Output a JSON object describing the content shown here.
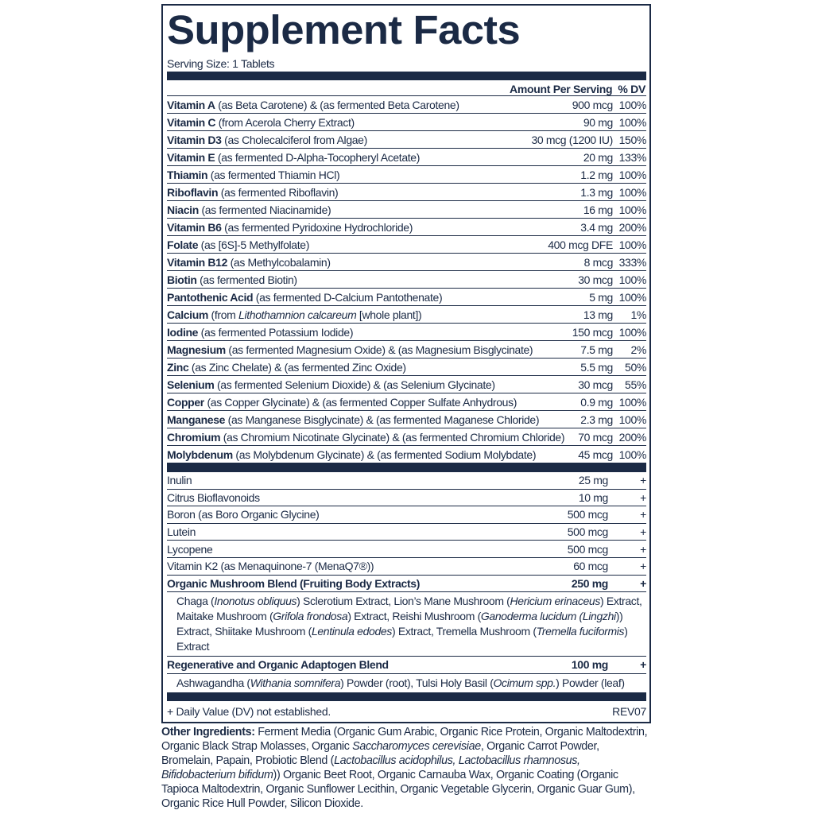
{
  "title": "Supplement Facts",
  "serving_size": "Serving Size: 1 Tablets",
  "header": "Amount Per Serving  % DV",
  "vitamins": [
    {
      "name": "Vitamin A",
      "desc": [
        {
          "t": " (as Beta Carotene) & (as fermented Beta Carotene)"
        }
      ],
      "amount": "900 mcg",
      "dv": "100%"
    },
    {
      "name": "Vitamin C",
      "desc": [
        {
          "t": " (from Acerola Cherry Extract)"
        }
      ],
      "amount": "90 mg",
      "dv": "100%"
    },
    {
      "name": "Vitamin D3",
      "desc": [
        {
          "t": " (as Cholecalciferol from Algae)"
        }
      ],
      "amount": "30 mcg (1200 IU)",
      "dv": "150%"
    },
    {
      "name": "Vitamin E",
      "desc": [
        {
          "t": " (as fermented D-Alpha-Tocopheryl Acetate)"
        }
      ],
      "amount": "20 mg",
      "dv": "133%"
    },
    {
      "name": "Thiamin",
      "desc": [
        {
          "t": " (as fermented Thiamin HCl)"
        }
      ],
      "amount": "1.2 mg",
      "dv": "100%"
    },
    {
      "name": "Riboflavin",
      "desc": [
        {
          "t": " (as fermented Riboflavin)"
        }
      ],
      "amount": "1.3 mg",
      "dv": "100%"
    },
    {
      "name": "Niacin",
      "desc": [
        {
          "t": " (as fermented Niacinamide)"
        }
      ],
      "amount": "16 mg",
      "dv": "100%"
    },
    {
      "name": "Vitamin B6",
      "desc": [
        {
          "t": " (as fermented Pyridoxine Hydrochloride)"
        }
      ],
      "amount": "3.4 mg",
      "dv": "200%"
    },
    {
      "name": "Folate",
      "desc": [
        {
          "t": " (as [6S]-5 Methylfolate)"
        }
      ],
      "amount": "400 mcg DFE",
      "dv": "100%"
    },
    {
      "name": "Vitamin B12",
      "desc": [
        {
          "t": " (as Methylcobalamin)"
        }
      ],
      "amount": "8 mcg",
      "dv": "333%"
    },
    {
      "name": "Biotin",
      "desc": [
        {
          "t": " (as fermented Biotin)"
        }
      ],
      "amount": "30 mcg",
      "dv": "100%"
    },
    {
      "name": "Pantothenic Acid",
      "desc": [
        {
          "t": " (as fermented D-Calcium Pantothenate)"
        }
      ],
      "amount": "5 mg",
      "dv": "100%"
    },
    {
      "name": "Calcium",
      "desc": [
        {
          "t": " (from "
        },
        {
          "t": "Lithothamnion calcareum",
          "i": true
        },
        {
          "t": " [whole plant])"
        }
      ],
      "amount": "13 mg",
      "dv": "1%"
    },
    {
      "name": "Iodine",
      "desc": [
        {
          "t": " (as fermented Potassium Iodide)"
        }
      ],
      "amount": "150 mcg",
      "dv": "100%"
    },
    {
      "name": "Magnesium",
      "desc": [
        {
          "t": " (as fermented Magnesium Oxide) & (as Magnesium Bisglycinate)"
        }
      ],
      "amount": "7.5 mg",
      "dv": "2%"
    },
    {
      "name": "Zinc",
      "desc": [
        {
          "t": " (as Zinc Chelate) & (as fermented Zinc Oxide)"
        }
      ],
      "amount": "5.5 mg",
      "dv": "50%"
    },
    {
      "name": "Selenium",
      "desc": [
        {
          "t": " (as fermented Selenium Dioxide) & (as Selenium Glycinate)"
        }
      ],
      "amount": "30 mcg",
      "dv": "55%"
    },
    {
      "name": "Copper",
      "desc": [
        {
          "t": " (as Copper Glycinate) & (as fermented Copper Sulfate Anhydrous)"
        }
      ],
      "amount": "0.9 mg",
      "dv": "100%"
    },
    {
      "name": "Manganese",
      "desc": [
        {
          "t": " (as Manganese Bisglycinate) & (as fermented Maganese Chloride)"
        }
      ],
      "amount": "2.3 mg",
      "dv": "100%"
    },
    {
      "name": "Chromium",
      "desc": [
        {
          "t": " (as Chromium Nicotinate Glycinate) & (as fermented Chromium Chloride)"
        }
      ],
      "amount": "70 mcg",
      "dv": "200%"
    },
    {
      "name": "Molybdenum",
      "desc": [
        {
          "t": " (as Molybdenum Glycinate) & (as fermented Sodium Molybdate)"
        }
      ],
      "amount": "45 mcg",
      "dv": "100%"
    }
  ],
  "others": [
    {
      "name": "Inulin",
      "amount": "25 mg",
      "dv": "+"
    },
    {
      "name": "Citrus Bioflavonoids",
      "amount": "10 mg",
      "dv": "+"
    },
    {
      "name": "Boron (as Boro Organic Glycine)",
      "amount": "500 mcg",
      "dv": "+"
    },
    {
      "name": "Lutein",
      "amount": "500 mcg",
      "dv": "+"
    },
    {
      "name": "Lycopene",
      "amount": "500 mcg",
      "dv": "+"
    },
    {
      "name": "Vitamin K2 (as Menaquinone-7 (MenaQ7®))",
      "amount": "60 mcg",
      "dv": "+"
    }
  ],
  "mushroom": {
    "name": "Organic Mushroom Blend (Fruiting Body Extracts)",
    "amount": "250 mg",
    "dv": "+",
    "desc": [
      {
        "t": "Chaga ("
      },
      {
        "t": "Inonotus obliquus",
        "i": true
      },
      {
        "t": ") Sclerotium Extract, Lion’s Mane Mushroom ("
      },
      {
        "t": "Hericium erinaceus",
        "i": true
      },
      {
        "t": ") Extract, Maitake Mushroom ("
      },
      {
        "t": "Grifola frondosa",
        "i": true
      },
      {
        "t": ") Extract, Reishi Mushroom ("
      },
      {
        "t": "Ganoderma lucidum (Lingzhi",
        "i": true
      },
      {
        "t": ")) Extract, Shiitake Mushroom ("
      },
      {
        "t": "Lentinula edodes",
        "i": true
      },
      {
        "t": ") Extract, Tremella Mushroom ("
      },
      {
        "t": "Tremella fuciformis",
        "i": true
      },
      {
        "t": ") Extract"
      }
    ]
  },
  "adaptogen": {
    "name": "Regenerative and Organic Adaptogen Blend",
    "amount": "100 mg",
    "dv": "+",
    "desc": [
      {
        "t": "Ashwagandha ("
      },
      {
        "t": "Withania somnifera",
        "i": true
      },
      {
        "t": ") Powder (root), Tulsi Holy Basil ("
      },
      {
        "t": "Ocimum spp.",
        "i": true
      },
      {
        "t": ") Powder (leaf)"
      }
    ]
  },
  "footnote": "+ Daily Value (DV) not established.",
  "revision": "REV07",
  "other_ingredients": {
    "label": "Other Ingredients:",
    "text": [
      {
        "t": " Ferment Media (Organic Gum Arabic, Organic Rice Protein, Organic Maltodextrin, Organic Black Strap Molasses, Organic "
      },
      {
        "t": "Saccharomyces cerevisiae",
        "i": true
      },
      {
        "t": ", Organic Carrot Powder, Bromelain, Papain, Probiotic Blend ("
      },
      {
        "t": "Lactobacillus acidophilus, Lactobacillus rhamnosus, Bifidobacterium bifidum",
        "i": true
      },
      {
        "t": ")) Organic Beet Root, Organic Carnauba Wax, Organic Coating (Organic Tapioca Maltodextrin, Organic Sunflower Lecithin, Organic Vegetable Glycerin, Organic Guar Gum), Organic Rice Hull Powder, Silicon Dioxide."
      }
    ]
  },
  "colors": {
    "ink": "#1b2a45"
  }
}
